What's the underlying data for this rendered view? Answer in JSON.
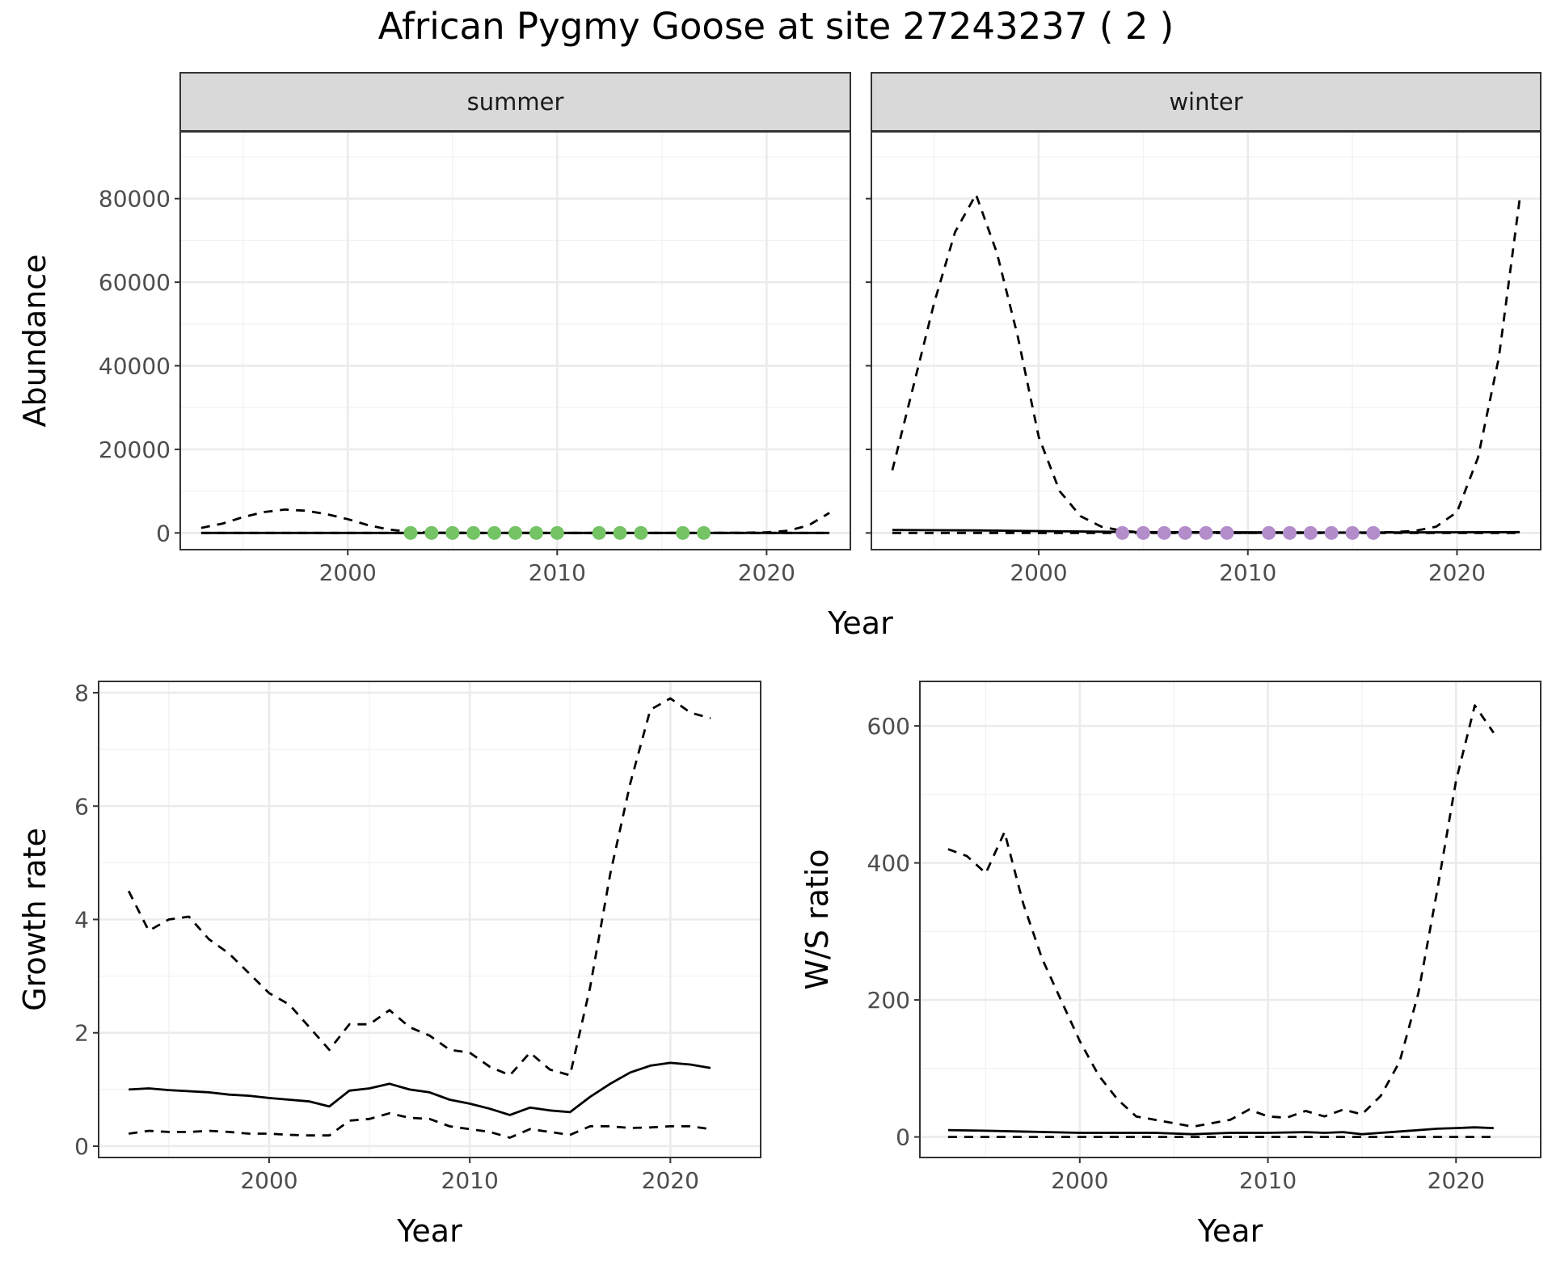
{
  "title": "African Pygmy Goose at site 27243237 ( 2 )",
  "colors": {
    "summer_points": "#74c365",
    "winter_points": "#b38dca",
    "line": "#000000",
    "strip_bg": "#d9d9d9",
    "grid": "#ebebeb"
  },
  "chart_data": [
    {
      "id": "abundance",
      "type": "line",
      "facets": [
        "summer",
        "winter"
      ],
      "xlabel": "Year",
      "ylabel": "Abundance",
      "xlim": [
        1992,
        2024
      ],
      "ylim": [
        -4000,
        96000
      ],
      "xticks": [
        2000,
        2010,
        2020
      ],
      "xtick_labels": [
        "2000",
        "2010",
        "2020"
      ],
      "yticks": [
        0,
        20000,
        40000,
        60000,
        80000
      ],
      "ytick_labels": [
        "0",
        "20000",
        "40000",
        "60000",
        "80000"
      ],
      "panels": [
        {
          "facet": "summer",
          "series": [
            {
              "name": "estimate",
              "style": "solid",
              "x": [
                1993,
                2000,
                2005,
                2010,
                2015,
                2020,
                2023
              ],
              "y": [
                0,
                0,
                0,
                0,
                0,
                0,
                0
              ]
            },
            {
              "name": "upper",
              "style": "dashed",
              "x": [
                1993,
                1994,
                1995,
                1996,
                1997,
                1998,
                1999,
                2000,
                2001,
                2002,
                2003,
                2004,
                2005,
                2010,
                2015,
                2019,
                2020,
                2021,
                2022,
                2023
              ],
              "y": [
                1200,
                2200,
                3800,
                5000,
                5600,
                5300,
                4500,
                3300,
                1800,
                800,
                250,
                80,
                20,
                0,
                0,
                50,
                150,
                500,
                1800,
                4800
              ]
            },
            {
              "name": "lower",
              "style": "dashed",
              "x": [
                1993,
                2023
              ],
              "y": [
                0,
                0
              ]
            }
          ],
          "points": {
            "color_key": "summer_points",
            "x": [
              2003,
              2004,
              2005,
              2006,
              2007,
              2008,
              2009,
              2010,
              2012,
              2013,
              2014,
              2016,
              2017
            ],
            "y": [
              0,
              0,
              0,
              0,
              0,
              0,
              0,
              0,
              0,
              0,
              0,
              0,
              0
            ]
          }
        },
        {
          "facet": "winter",
          "series": [
            {
              "name": "estimate",
              "style": "solid",
              "x": [
                1993,
                1997,
                2000,
                2003,
                2005,
                2010,
                2015,
                2020,
                2023
              ],
              "y": [
                700,
                600,
                450,
                300,
                200,
                150,
                100,
                150,
                200
              ]
            },
            {
              "name": "upper",
              "style": "dashed",
              "x": [
                1993,
                1994,
                1995,
                1996,
                1997,
                1998,
                1999,
                2000,
                2001,
                2002,
                2003,
                2004,
                2005,
                2010,
                2015,
                2017,
                2018,
                2019,
                2020,
                2021,
                2022,
                2023
              ],
              "y": [
                15000,
                35000,
                55000,
                72000,
                81000,
                67000,
                47000,
                23000,
                10000,
                4000,
                1500,
                500,
                100,
                0,
                50,
                200,
                500,
                1500,
                5000,
                18000,
                42000,
                80000
              ]
            },
            {
              "name": "lower",
              "style": "dashed",
              "x": [
                1993,
                2023
              ],
              "y": [
                0,
                0
              ]
            }
          ],
          "points": {
            "color_key": "winter_points",
            "x": [
              2004,
              2005,
              2006,
              2007,
              2008,
              2009,
              2011,
              2012,
              2013,
              2014,
              2015,
              2016
            ],
            "y": [
              0,
              0,
              0,
              0,
              0,
              0,
              0,
              0,
              0,
              0,
              0,
              0
            ]
          }
        }
      ]
    },
    {
      "id": "growth",
      "type": "line",
      "xlabel": "Year",
      "ylabel": "Growth rate",
      "xlim": [
        1991.5,
        2024.5
      ],
      "ylim": [
        -0.2,
        8.2
      ],
      "xticks": [
        2000,
        2010,
        2020
      ],
      "xtick_labels": [
        "2000",
        "2010",
        "2020"
      ],
      "yticks": [
        0,
        2,
        4,
        6,
        8
      ],
      "ytick_labels": [
        "0",
        "2",
        "4",
        "6",
        "8"
      ],
      "series": [
        {
          "name": "estimate",
          "style": "solid",
          "x": [
            1993,
            1994,
            1995,
            1996,
            1997,
            1998,
            1999,
            2000,
            2001,
            2002,
            2003,
            2004,
            2005,
            2006,
            2007,
            2008,
            2009,
            2010,
            2011,
            2012,
            2013,
            2014,
            2015,
            2016,
            2017,
            2018,
            2019,
            2020,
            2021,
            2022
          ],
          "y": [
            1.0,
            1.02,
            0.99,
            0.97,
            0.95,
            0.91,
            0.89,
            0.85,
            0.82,
            0.79,
            0.7,
            0.98,
            1.02,
            1.1,
            1.0,
            0.95,
            0.82,
            0.75,
            0.66,
            0.55,
            0.68,
            0.63,
            0.6,
            0.87,
            1.1,
            1.3,
            1.42,
            1.47,
            1.44,
            1.38
          ]
        },
        {
          "name": "upper",
          "style": "dashed",
          "x": [
            1993,
            1994,
            1995,
            1996,
            1997,
            1998,
            1999,
            2000,
            2001,
            2002,
            2003,
            2004,
            2005,
            2006,
            2007,
            2008,
            2009,
            2010,
            2011,
            2012,
            2013,
            2014,
            2015,
            2016,
            2017,
            2018,
            2019,
            2020,
            2021,
            2022
          ],
          "y": [
            4.5,
            3.8,
            4.0,
            4.05,
            3.65,
            3.4,
            3.05,
            2.7,
            2.5,
            2.1,
            1.7,
            2.15,
            2.15,
            2.4,
            2.1,
            1.95,
            1.7,
            1.65,
            1.4,
            1.25,
            1.65,
            1.35,
            1.25,
            2.8,
            4.8,
            6.4,
            7.7,
            7.9,
            7.65,
            7.55
          ]
        },
        {
          "name": "lower",
          "style": "dashed",
          "x": [
            1993,
            1994,
            1995,
            1996,
            1997,
            1998,
            1999,
            2000,
            2001,
            2002,
            2003,
            2004,
            2005,
            2006,
            2007,
            2008,
            2009,
            2010,
            2011,
            2012,
            2013,
            2014,
            2015,
            2016,
            2017,
            2018,
            2019,
            2020,
            2021,
            2022
          ],
          "y": [
            0.22,
            0.27,
            0.25,
            0.25,
            0.27,
            0.25,
            0.22,
            0.22,
            0.2,
            0.19,
            0.19,
            0.45,
            0.48,
            0.58,
            0.5,
            0.48,
            0.35,
            0.3,
            0.25,
            0.15,
            0.3,
            0.25,
            0.2,
            0.35,
            0.35,
            0.32,
            0.33,
            0.35,
            0.35,
            0.3
          ]
        }
      ]
    },
    {
      "id": "ws_ratio",
      "type": "line",
      "xlabel": "Year",
      "ylabel": "W/S ratio",
      "xlim": [
        1991.5,
        2024.5
      ],
      "ylim": [
        -30,
        665
      ],
      "xticks": [
        2000,
        2010,
        2020
      ],
      "xtick_labels": [
        "2000",
        "2010",
        "2020"
      ],
      "yticks": [
        0,
        200,
        400,
        600
      ],
      "ytick_labels": [
        "0",
        "200",
        "400",
        "600"
      ],
      "series": [
        {
          "name": "estimate",
          "style": "solid",
          "x": [
            1993,
            1995,
            2000,
            2004,
            2006,
            2008,
            2010,
            2012,
            2013,
            2014,
            2015,
            2016,
            2017,
            2018,
            2019,
            2020,
            2021,
            2022
          ],
          "y": [
            10,
            9,
            6,
            6,
            4,
            6,
            6,
            7,
            6,
            7,
            4,
            6,
            8,
            10,
            12,
            13,
            14,
            13
          ]
        },
        {
          "name": "upper",
          "style": "dashed",
          "x": [
            1993,
            1994,
            1995,
            1996,
            1997,
            1998,
            1999,
            2000,
            2001,
            2002,
            2003,
            2004,
            2005,
            2006,
            2007,
            2008,
            2009,
            2010,
            2011,
            2012,
            2013,
            2014,
            2015,
            2016,
            2017,
            2018,
            2019,
            2020,
            2021,
            2022
          ],
          "y": [
            420,
            410,
            385,
            445,
            340,
            260,
            200,
            140,
            90,
            55,
            30,
            25,
            20,
            15,
            20,
            25,
            40,
            30,
            28,
            38,
            30,
            40,
            33,
            60,
            110,
            210,
            360,
            520,
            630,
            590
          ]
        },
        {
          "name": "lower",
          "style": "dashed",
          "x": [
            1993,
            2000,
            2005,
            2010,
            2015,
            2020,
            2022
          ],
          "y": [
            0,
            0,
            0,
            0,
            0,
            0,
            0
          ]
        }
      ]
    }
  ]
}
